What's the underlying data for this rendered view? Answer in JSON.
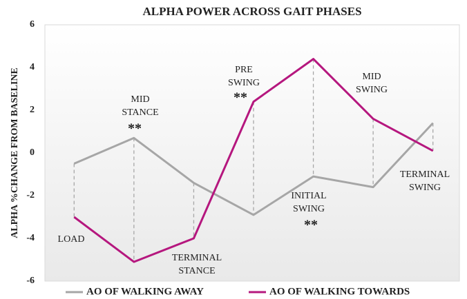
{
  "chart_data": {
    "type": "line",
    "title": "ALPHA POWER ACROSS GAIT PHASES",
    "y_label": "ALPHA %CHANGE FROM BASELINE",
    "categories": [
      "LOAD",
      "MID STANCE",
      "TERMINAL STANCE",
      "PRE SWING",
      "INITIAL SWING",
      "MID SWING",
      "TERMINAL SWING"
    ],
    "significance": [
      null,
      "**",
      null,
      "**",
      "**",
      null,
      null
    ],
    "series": [
      {
        "name": "AO OF WALKING AWAY",
        "color": "#a6a6a6",
        "values": [
          -0.5,
          0.7,
          -1.4,
          -2.9,
          -1.1,
          -1.6,
          1.4
        ]
      },
      {
        "name": "AO OF WALKING TOWARDS",
        "color": "#b5177e",
        "values": [
          -3.0,
          -5.1,
          -4.0,
          2.4,
          4.4,
          1.6,
          0.1
        ]
      }
    ],
    "ylim": [
      -6,
      6
    ],
    "yticks": [
      -6,
      -4,
      -2,
      0,
      2,
      4,
      6
    ],
    "grid": false,
    "legend": "bottom"
  }
}
